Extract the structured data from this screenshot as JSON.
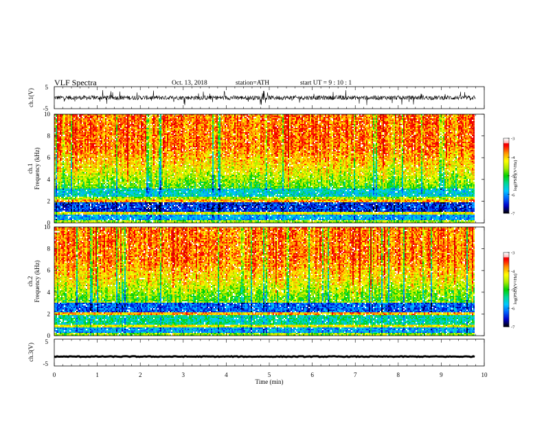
{
  "header": {
    "title": "VLF  Spectra",
    "date": "Oct. 13, 2018",
    "station": "station=ATH",
    "start": "start  UT  =    9  : 10 : 1"
  },
  "chart_data": [
    {
      "type": "line",
      "name": "ch1-waveform",
      "ylabel": "ch.1(V)",
      "ylim": [
        -5,
        5
      ],
      "yticks": [
        "5",
        "-5"
      ],
      "xlim": [
        0,
        9.8
      ],
      "description_visible": "noisy waveform mostly between -1 and +1 V with frequent spikes",
      "baseline": 0,
      "typical_amplitude": 1.0,
      "spike_amplitude": 3.5
    },
    {
      "type": "heatmap",
      "name": "ch1-spectrogram",
      "ylabel": "ch.1\nFrequency  (kHz)",
      "ylabel_line1": "ch.1",
      "ylabel_line2": "Frequency  (kHz)",
      "ylim": [
        0,
        10
      ],
      "yticks": [
        "0",
        "2",
        "4",
        "6",
        "8",
        "10"
      ],
      "xlim": [
        0,
        9.8
      ],
      "colorbar": {
        "label": "log(PSD)(V²/Hz)",
        "range": [
          -7,
          -3
        ],
        "ticks": [
          "-3",
          "-4",
          "-5",
          "-6",
          "-7"
        ]
      }
    },
    {
      "type": "heatmap",
      "name": "ch2-spectrogram",
      "ylabel_line1": "ch.2",
      "ylabel_line2": "Frequency  (kHz)",
      "ylim": [
        0,
        10
      ],
      "yticks": [
        "0",
        "2",
        "4",
        "6",
        "8",
        "10"
      ],
      "xlim": [
        0,
        9.8
      ],
      "colorbar": {
        "label": "log(PSD)(V²/Hz)",
        "range": [
          -7,
          -3
        ],
        "ticks": [
          "-3",
          "-4",
          "-5",
          "-6",
          "-7"
        ]
      }
    },
    {
      "type": "line",
      "name": "ch3-waveform",
      "ylabel": "ch.3(V)",
      "ylim": [
        -5,
        5
      ],
      "yticks": [
        "5",
        "-5"
      ],
      "xlim": [
        0,
        9.8
      ],
      "baseline": -1.5,
      "typical_amplitude": 0.15
    }
  ],
  "x_axis": {
    "label": "Time  (min)",
    "range": [
      0,
      10
    ],
    "ticks": [
      "0",
      "1",
      "2",
      "3",
      "4",
      "5",
      "6",
      "7",
      "8",
      "9",
      "10"
    ]
  },
  "colors": {
    "spectrogram_scale": [
      "#000000",
      "#0000c8",
      "#0064ff",
      "#00c8ff",
      "#00d89a",
      "#00d200",
      "#b4ec00",
      "#ffff00",
      "#ff9600",
      "#ff0000",
      "#d20000",
      "#ffffff"
    ]
  }
}
